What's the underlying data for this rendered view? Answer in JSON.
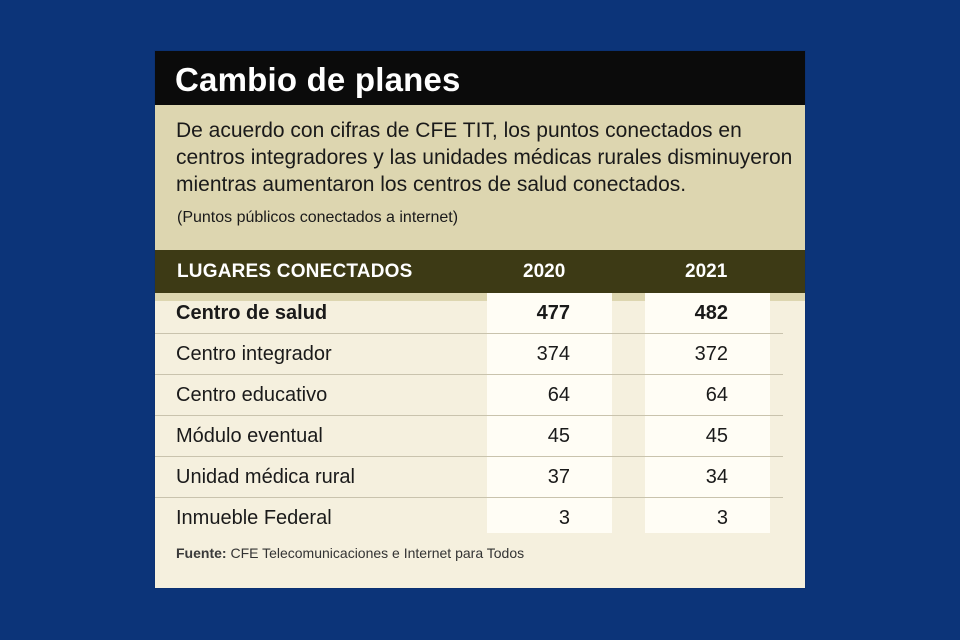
{
  "chart_data": {
    "type": "table",
    "title": "Cambio de planes",
    "description": "De acuerdo con cifras de CFE TIT, los puntos conectados en centros integradores y las unidades médicas rurales disminu­yeron mientras aumentaron los centros de salud conectados.",
    "subtitle": "(Puntos públicos conectados a internet)",
    "columns": [
      "LUGARES CONECTADOS",
      "2020",
      "2021"
    ],
    "rows": [
      {
        "label": "Centro de salud",
        "v2020": 477,
        "v2021": 482,
        "bold": true
      },
      {
        "label": "Centro integrador",
        "v2020": 374,
        "v2021": 372
      },
      {
        "label": "Centro educativo",
        "v2020": 64,
        "v2021": 64
      },
      {
        "label": "Módulo eventual",
        "v2020": 45,
        "v2021": 45
      },
      {
        "label": "Unidad médica rural",
        "v2020": 37,
        "v2021": 34
      },
      {
        "label": "Inmueble Federal",
        "v2020": 3,
        "v2021": 3
      }
    ],
    "source_label": "Fuente:",
    "source_text": "CFE Telecomunicaciones e Internet para Todos"
  },
  "colors": {
    "background": "#0c3479",
    "title_bar": "#0b0b0b",
    "intro_bg": "#ddd6b0",
    "header_bg": "#3d3a15",
    "card_bg": "#f5f0de"
  }
}
